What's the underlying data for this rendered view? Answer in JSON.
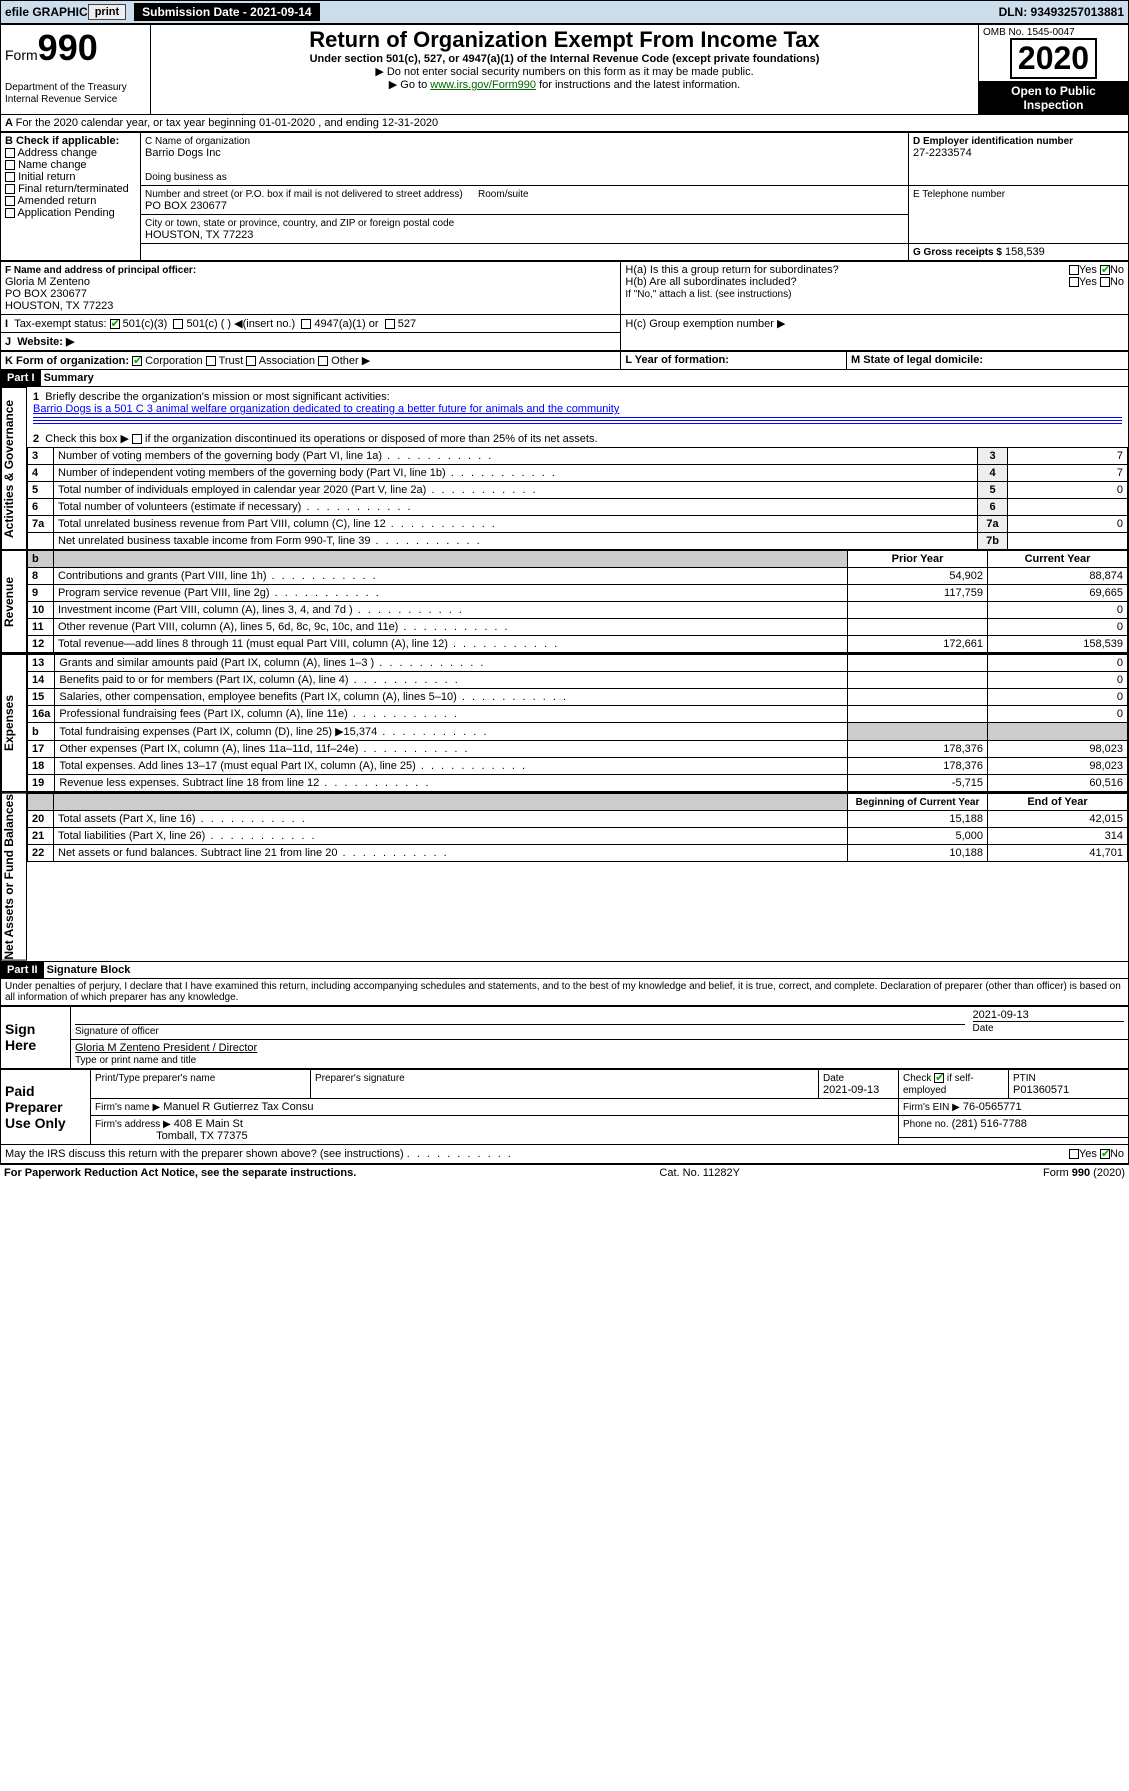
{
  "top": {
    "efile": "efile GRAPHIC",
    "print": "print",
    "sub_label": "Submission Date - 2021-09-14",
    "dln": "DLN: 93493257013881"
  },
  "header": {
    "form_label": "Form",
    "form_num": "990",
    "dept": "Department of the Treasury",
    "irs": "Internal Revenue Service",
    "title": "Return of Organization Exempt From Income Tax",
    "subtitle": "Under section 501(c), 527, or 4947(a)(1) of the Internal Revenue Code (except private foundations)",
    "note1": "▶ Do not enter social security numbers on this form as it may be made public.",
    "note2_pre": "▶ Go to ",
    "note2_link": "www.irs.gov/Form990",
    "note2_post": " for instructions and the latest information.",
    "omb": "OMB No. 1545-0047",
    "year": "2020",
    "open": "Open to Public Inspection"
  },
  "a_line": "For the 2020 calendar year, or tax year beginning 01-01-2020    , and ending 12-31-2020",
  "boxB": {
    "label": "B Check if applicable:",
    "items": [
      "Address change",
      "Name change",
      "Initial return",
      "Final return/terminated",
      "Amended return",
      "Application Pending"
    ]
  },
  "boxC": {
    "name_lbl": "C Name of organization",
    "name": "Barrio Dogs Inc",
    "dba_lbl": "Doing business as",
    "addr_lbl": "Number and street (or P.O. box if mail is not delivered to street address)",
    "room_lbl": "Room/suite",
    "addr": "PO BOX 230677",
    "city_lbl": "City or town, state or province, country, and ZIP or foreign postal code",
    "city": "HOUSTON, TX  77223"
  },
  "boxD": {
    "lbl": "D Employer identification number",
    "val": "27-2233574"
  },
  "boxE": {
    "lbl": "E Telephone number",
    "val": ""
  },
  "boxG": {
    "lbl": "G Gross receipts $",
    "val": "158,539"
  },
  "boxF": {
    "lbl": "F  Name and address of principal officer:",
    "name": "Gloria M Zenteno",
    "addr1": "PO BOX 230677",
    "addr2": "HOUSTON, TX  77223"
  },
  "boxH": {
    "a_lbl": "H(a)  Is this a group return for subordinates?",
    "b_lbl": "H(b)  Are all subordinates included?",
    "note": "If \"No,\" attach a list. (see instructions)",
    "c_lbl": "H(c)  Group exemption number ▶"
  },
  "boxI": {
    "lbl": "Tax-exempt status:",
    "c3": "501(c)(3)",
    "c": "501(c) (  ) ◀(insert no.)",
    "a1": "4947(a)(1) or",
    "527": "527"
  },
  "boxJ": {
    "lbl": "Website: ▶"
  },
  "boxK": {
    "lbl": "K Form of organization:",
    "corp": "Corporation",
    "trust": "Trust",
    "assoc": "Association",
    "other": "Other ▶"
  },
  "boxL": {
    "lbl": "L Year of formation:"
  },
  "boxM": {
    "lbl": "M State of legal domicile:"
  },
  "part1": {
    "hdr": "Part I",
    "title": "Summary",
    "l1_lbl": "Briefly describe the organization's mission or most significant activities:",
    "l1_text": "Barrio Dogs is a 501 C 3 animal welfare organization dedicated to creating a better future for animals and the community",
    "l2": "Check this box ▶        if the organization discontinued its operations or disposed of more than 25% of its net assets.",
    "rows_gov": [
      {
        "n": "3",
        "t": "Number of voting members of the governing body (Part VI, line 1a)",
        "ln": "3",
        "v": "7"
      },
      {
        "n": "4",
        "t": "Number of independent voting members of the governing body (Part VI, line 1b)",
        "ln": "4",
        "v": "7"
      },
      {
        "n": "5",
        "t": "Total number of individuals employed in calendar year 2020 (Part V, line 2a)",
        "ln": "5",
        "v": "0"
      },
      {
        "n": "6",
        "t": "Total number of volunteers (estimate if necessary)",
        "ln": "6",
        "v": ""
      },
      {
        "n": "7a",
        "t": "Total unrelated business revenue from Part VIII, column (C), line 12",
        "ln": "7a",
        "v": "0"
      },
      {
        "n": "",
        "t": "Net unrelated business taxable income from Form 990-T, line 39",
        "ln": "7b",
        "v": ""
      }
    ],
    "col_py": "Prior Year",
    "col_cy": "Current Year",
    "rows_rev": [
      {
        "n": "8",
        "t": "Contributions and grants (Part VIII, line 1h)",
        "py": "54,902",
        "cy": "88,874"
      },
      {
        "n": "9",
        "t": "Program service revenue (Part VIII, line 2g)",
        "py": "117,759",
        "cy": "69,665"
      },
      {
        "n": "10",
        "t": "Investment income (Part VIII, column (A), lines 3, 4, and 7d )",
        "py": "",
        "cy": "0"
      },
      {
        "n": "11",
        "t": "Other revenue (Part VIII, column (A), lines 5, 6d, 8c, 9c, 10c, and 11e)",
        "py": "",
        "cy": "0"
      },
      {
        "n": "12",
        "t": "Total revenue—add lines 8 through 11 (must equal Part VIII, column (A), line 12)",
        "py": "172,661",
        "cy": "158,539"
      }
    ],
    "rows_exp": [
      {
        "n": "13",
        "t": "Grants and similar amounts paid (Part IX, column (A), lines 1–3 )",
        "py": "",
        "cy": "0"
      },
      {
        "n": "14",
        "t": "Benefits paid to or for members (Part IX, column (A), line 4)",
        "py": "",
        "cy": "0"
      },
      {
        "n": "15",
        "t": "Salaries, other compensation, employee benefits (Part IX, column (A), lines 5–10)",
        "py": "",
        "cy": "0"
      },
      {
        "n": "16a",
        "t": "Professional fundraising fees (Part IX, column (A), line 11e)",
        "py": "",
        "cy": "0"
      },
      {
        "n": "b",
        "t": "Total fundraising expenses (Part IX, column (D), line 25) ▶15,374",
        "py": "shade",
        "cy": "shade"
      },
      {
        "n": "17",
        "t": "Other expenses (Part IX, column (A), lines 11a–11d, 11f–24e)",
        "py": "178,376",
        "cy": "98,023"
      },
      {
        "n": "18",
        "t": "Total expenses. Add lines 13–17 (must equal Part IX, column (A), line 25)",
        "py": "178,376",
        "cy": "98,023"
      },
      {
        "n": "19",
        "t": "Revenue less expenses. Subtract line 18 from line 12",
        "py": "-5,715",
        "cy": "60,516"
      }
    ],
    "col_bcy": "Beginning of Current Year",
    "col_eoy": "End of Year",
    "rows_na": [
      {
        "n": "20",
        "t": "Total assets (Part X, line 16)",
        "py": "15,188",
        "cy": "42,015"
      },
      {
        "n": "21",
        "t": "Total liabilities (Part X, line 26)",
        "py": "5,000",
        "cy": "314"
      },
      {
        "n": "22",
        "t": "Net assets or fund balances. Subtract line 21 from line 20",
        "py": "10,188",
        "cy": "41,701"
      }
    ],
    "side_gov": "Activities & Governance",
    "side_rev": "Revenue",
    "side_exp": "Expenses",
    "side_na": "Net Assets or Fund Balances"
  },
  "part2": {
    "hdr": "Part II",
    "title": "Signature Block",
    "decl": "Under penalties of perjury, I declare that I have examined this return, including accompanying schedules and statements, and to the best of my knowledge and belief, it is true, correct, and complete. Declaration of preparer (other than officer) is based on all information of which preparer has any knowledge.",
    "sign_here": "Sign Here",
    "sig_off": "Signature of officer",
    "date": "Date",
    "date_val": "2021-09-13",
    "name_title": "Gloria M Zenteno President / Director",
    "type_lbl": "Type or print name and title",
    "paid": "Paid Preparer Use Only",
    "prep_name_lbl": "Print/Type preparer's name",
    "prep_sig_lbl": "Preparer's signature",
    "prep_date_lbl": "Date",
    "prep_date": "2021-09-13",
    "check_lbl": "Check         if self-employed",
    "ptin_lbl": "PTIN",
    "ptin": "P01360571",
    "firm_name_lbl": "Firm's name    ▶",
    "firm_name": "Manuel R Gutierrez Tax Consu",
    "firm_ein_lbl": "Firm's EIN ▶",
    "firm_ein": "76-0565771",
    "firm_addr_lbl": "Firm's address ▶",
    "firm_addr": "408 E Main St",
    "firm_city": "Tomball, TX  77375",
    "phone_lbl": "Phone no.",
    "phone": "(281) 516-7788",
    "discuss": "May the IRS discuss this return with the preparer shown above? (see instructions)"
  },
  "footer": {
    "pra": "For Paperwork Reduction Act Notice, see the separate instructions.",
    "cat": "Cat. No. 11282Y",
    "form": "Form 990 (2020)"
  },
  "yes": "Yes",
  "no": "No"
}
